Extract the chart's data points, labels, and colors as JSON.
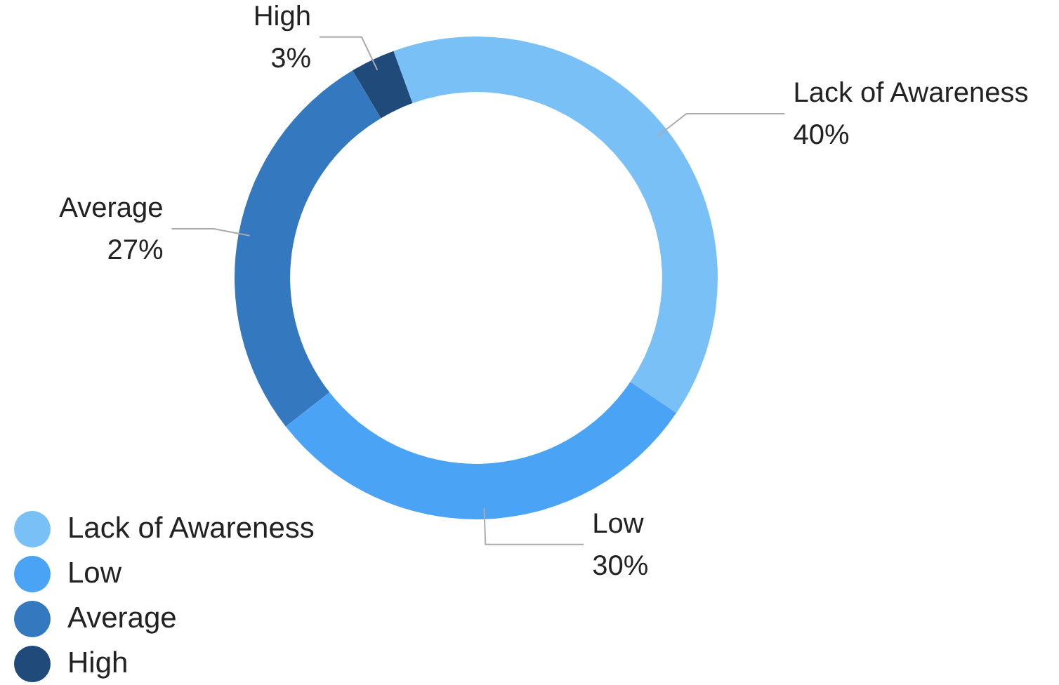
{
  "chart_data": {
    "type": "donut",
    "categories": [
      "Lack of Awareness",
      "Low",
      "Average",
      "High"
    ],
    "values": [
      40,
      30,
      27,
      3
    ],
    "colors": [
      "#79c0f7",
      "#4aa3f5",
      "#3478c0",
      "#1f4a7a"
    ],
    "value_labels": [
      "40%",
      "30%",
      "27%",
      "3%"
    ],
    "legend": "bottom left"
  }
}
